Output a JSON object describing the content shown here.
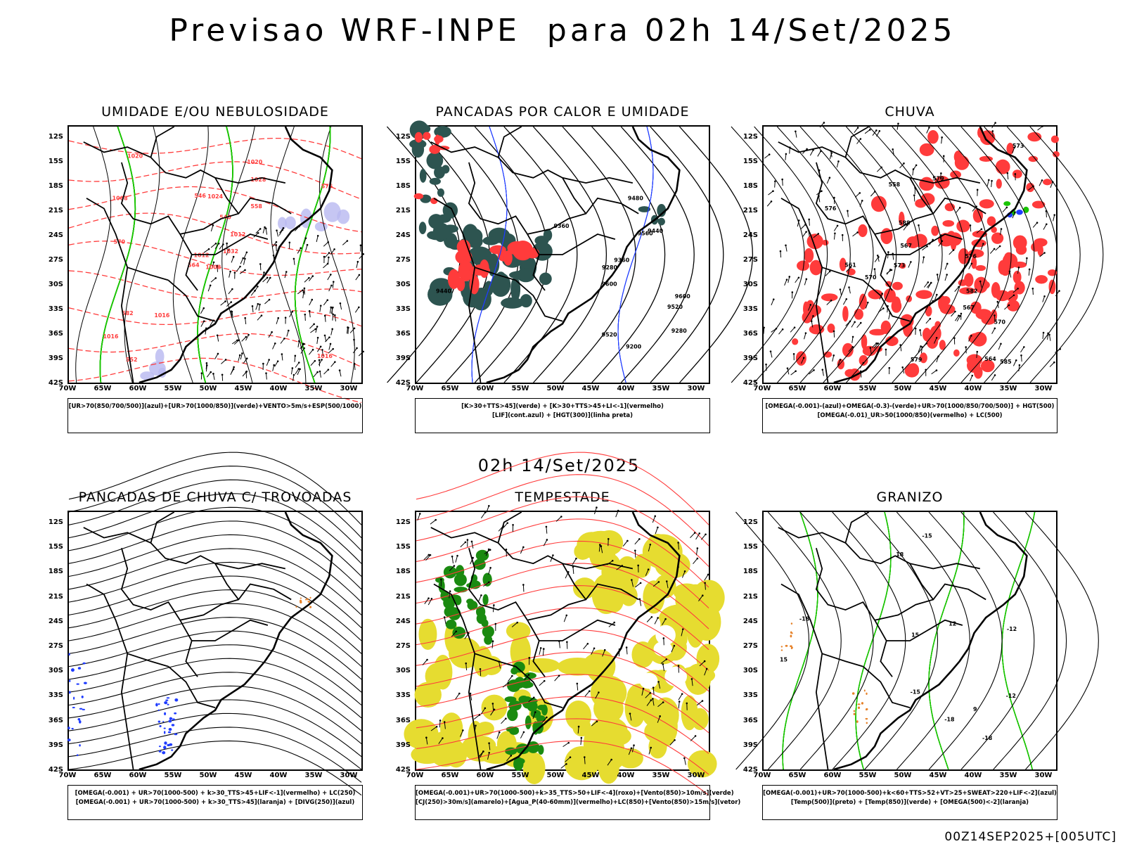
{
  "title": "Previsao WRF-INPE  para 02h 14/Set/2025",
  "subtitle": "02h 14/Set/2025",
  "footer": "00Z14SEP2025+[005UTC]",
  "axes": {
    "lat_ticks": [
      "12S",
      "15S",
      "18S",
      "21S",
      "24S",
      "27S",
      "30S",
      "33S",
      "36S",
      "39S",
      "42S"
    ],
    "lon_ticks": [
      "70W",
      "65W",
      "60W",
      "55W",
      "50W",
      "45W",
      "40W",
      "35W",
      "30W"
    ]
  },
  "colors": {
    "contour_black": "#000000",
    "red": "#ff3b3b",
    "green": "#19c400",
    "blue": "#1f3cff",
    "lavender": "#b8b8f0",
    "teal": "#2d5450",
    "yellow": "#e6dc30",
    "orange": "#e6822a",
    "darkgreen": "#1a8a10"
  },
  "panels": [
    {
      "id": "umidade",
      "title": "UMIDADE E/OU NEBULOSIDADE",
      "legend": [
        "[UR>70(850/700/500)](azul)+[UR>70(1000/850)](verde)+VENTO>5m/s+ESP(500/1000)"
      ],
      "contour_labels": [
        "1008",
        "1008",
        "1012",
        "1016",
        "1012",
        "1016",
        "1020",
        "1024",
        "1028",
        "1032",
        "1020",
        "1016",
        "570",
        "576",
        "564",
        "558",
        "552",
        "546",
        "540",
        "582"
      ]
    },
    {
      "id": "pancadas-calor",
      "title": "PANCADAS POR CALOR E UMIDADE",
      "legend": [
        "[K>30+TTS>45](verde) + [K>30+TTS>45+LI<-1](vermelho)",
        "[LIF](cont.azul) + [HGT(300)](linha preta)"
      ],
      "contour_labels": [
        "9600",
        "9600",
        "9560",
        "9520",
        "9520",
        "9480",
        "9440",
        "9360",
        "9280",
        "9200",
        "9360",
        "9280",
        "9440"
      ]
    },
    {
      "id": "chuva",
      "title": "CHUVA",
      "legend": [
        "[OMEGA(-0.001)-(azul)+OMEGA(-0.3)-(verde)+UR>70(1000/850/700/500)] + HGT(500)",
        "[OMEGA(-0.01)_UR>50(1000/850)(vermelho) + LC(500)"
      ],
      "contour_labels": [
        "588",
        "585",
        "582",
        "579",
        "576",
        "573",
        "570",
        "567",
        "564",
        "561",
        "558",
        "576",
        "579",
        "573",
        "570",
        "567"
      ]
    },
    {
      "id": "pancadas-trovoadas",
      "title": "PANCADAS DE CHUVA C/ TROVOADAS",
      "legend": [
        "[OMEGA(-0.001) + UR>70(1000-500) + k>30_TTS>45+LIF<-1](vermelho) + LC(250)",
        "[OMEGA(-0.001) + UR>70(1000-500) + k>30_TTS>45](laranja) + [DIVG(250)](azul)"
      ],
      "contour_labels": []
    },
    {
      "id": "tempestade",
      "title": "TEMPESTADE",
      "legend": [
        "[OMEGA(-0.001)+UR>70(1000-500)+k>35_TTS>50+LIF<-4](roxo)+[Vento(850)>10m/s](verde)",
        "[CJ(250)>30m/s](amarelo)+[Agua_P(40-60mm)](vermelho)+LC(850)+[Vento(850)>15m/s](vetor)"
      ],
      "contour_labels": []
    },
    {
      "id": "granizo",
      "title": "GRANIZO",
      "legend": [
        "[OMEGA(-0.001)+UR>70(1000-500)+k<60+TTS>52+VT>25+SWEAT>220+LIF<-2](azul)",
        "[Temp(500)](preto) + [Temp(850)](verde) + [OMEGA(500)<-2](laranja)"
      ],
      "contour_labels": [
        "-12",
        "-15",
        "-18",
        "-15",
        "-18",
        "18",
        "15",
        "12",
        "9",
        "15",
        "-12",
        "-18"
      ]
    }
  ]
}
